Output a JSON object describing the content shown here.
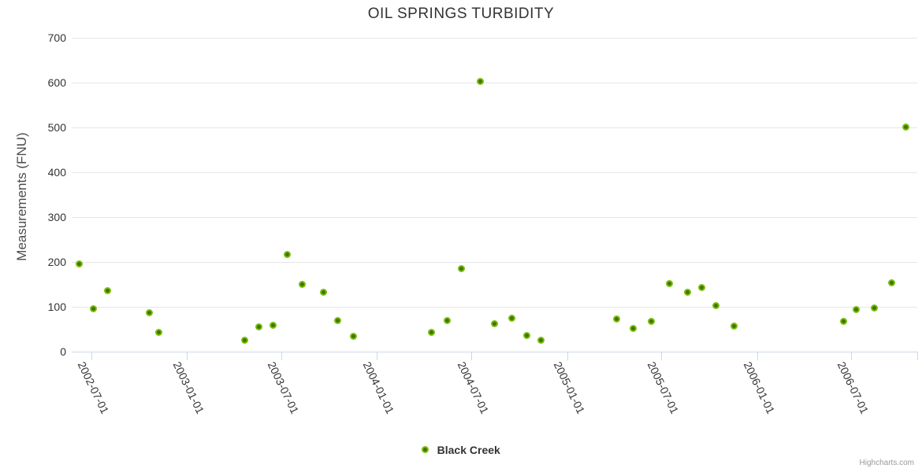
{
  "chart_data": {
    "type": "scatter",
    "title": "OIL SPRINGS TURBIDITY",
    "xlabel": "",
    "ylabel": "Measurements (FNU)",
    "ylim": [
      0,
      700
    ],
    "yticks": [
      0,
      100,
      200,
      300,
      400,
      500,
      600,
      700
    ],
    "xlim": [
      "2002-05-24",
      "2006-11-05"
    ],
    "xticks": [
      "2002-07-01",
      "2003-01-01",
      "2003-07-01",
      "2004-01-01",
      "2004-07-01",
      "2005-01-01",
      "2005-07-01",
      "2006-01-01",
      "2006-07-01"
    ],
    "grid": "horizontal",
    "legend_position": "bottom-center",
    "series": [
      {
        "name": "Black Creek",
        "marker_color": "#7cc00e",
        "marker_inner_color": "#3f7300",
        "points": [
          {
            "date": "2002-06-08",
            "value": 195
          },
          {
            "date": "2002-07-05",
            "value": 95
          },
          {
            "date": "2002-08-01",
            "value": 136
          },
          {
            "date": "2002-10-21",
            "value": 87
          },
          {
            "date": "2002-11-07",
            "value": 43
          },
          {
            "date": "2003-04-21",
            "value": 25
          },
          {
            "date": "2003-05-19",
            "value": 56
          },
          {
            "date": "2003-06-15",
            "value": 58
          },
          {
            "date": "2003-07-13",
            "value": 216
          },
          {
            "date": "2003-08-10",
            "value": 150
          },
          {
            "date": "2003-09-20",
            "value": 132
          },
          {
            "date": "2003-10-18",
            "value": 70
          },
          {
            "date": "2003-11-16",
            "value": 34
          },
          {
            "date": "2004-04-15",
            "value": 43
          },
          {
            "date": "2004-05-15",
            "value": 70
          },
          {
            "date": "2004-06-11",
            "value": 184
          },
          {
            "date": "2004-07-18",
            "value": 602
          },
          {
            "date": "2004-08-14",
            "value": 62
          },
          {
            "date": "2004-09-17",
            "value": 75
          },
          {
            "date": "2004-10-15",
            "value": 36
          },
          {
            "date": "2004-11-12",
            "value": 25
          },
          {
            "date": "2005-04-06",
            "value": 72
          },
          {
            "date": "2005-05-08",
            "value": 51
          },
          {
            "date": "2005-06-11",
            "value": 68
          },
          {
            "date": "2005-07-16",
            "value": 152
          },
          {
            "date": "2005-08-21",
            "value": 133
          },
          {
            "date": "2005-09-17",
            "value": 143
          },
          {
            "date": "2005-10-14",
            "value": 102
          },
          {
            "date": "2005-11-18",
            "value": 57
          },
          {
            "date": "2006-06-17",
            "value": 68
          },
          {
            "date": "2006-07-11",
            "value": 93
          },
          {
            "date": "2006-08-14",
            "value": 97
          },
          {
            "date": "2006-09-17",
            "value": 153
          },
          {
            "date": "2006-10-14",
            "value": 500
          }
        ]
      }
    ]
  },
  "colors": {
    "background": "#ffffff",
    "title": "#333333",
    "axis_label": "#333333",
    "axis_title": "#4d4d4d",
    "gridline": "#e6e6e6",
    "axis_line": "#ccd6eb",
    "legend_text": "#333333",
    "credit_text": "#999999"
  },
  "credit": {
    "label": "Highcharts.com"
  }
}
